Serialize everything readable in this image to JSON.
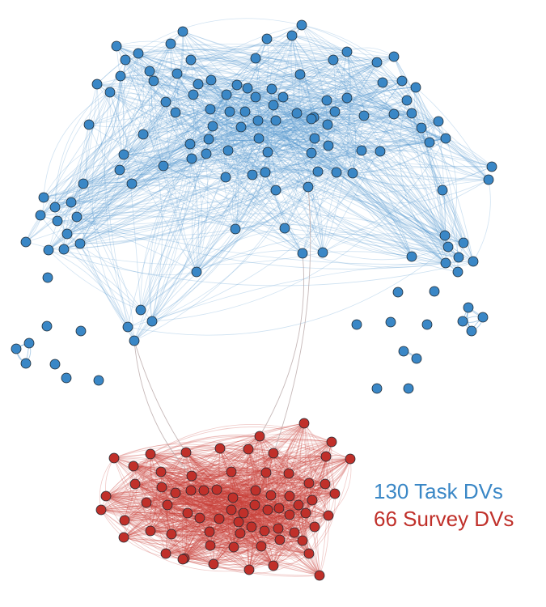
{
  "colors": {
    "task_node": "#3a87c6",
    "task_edge": "#5b9bd0",
    "survey_node": "#c0302a",
    "survey_edge": "#c8423a",
    "bridge_edge": "#b8a6a6",
    "node_stroke": "#1f2a33"
  },
  "legend": {
    "task_label": "130 Task DVs",
    "survey_label": "66 Survey DVs"
  },
  "graph": {
    "task_node_count": 130,
    "survey_node_count": 66
  }
}
